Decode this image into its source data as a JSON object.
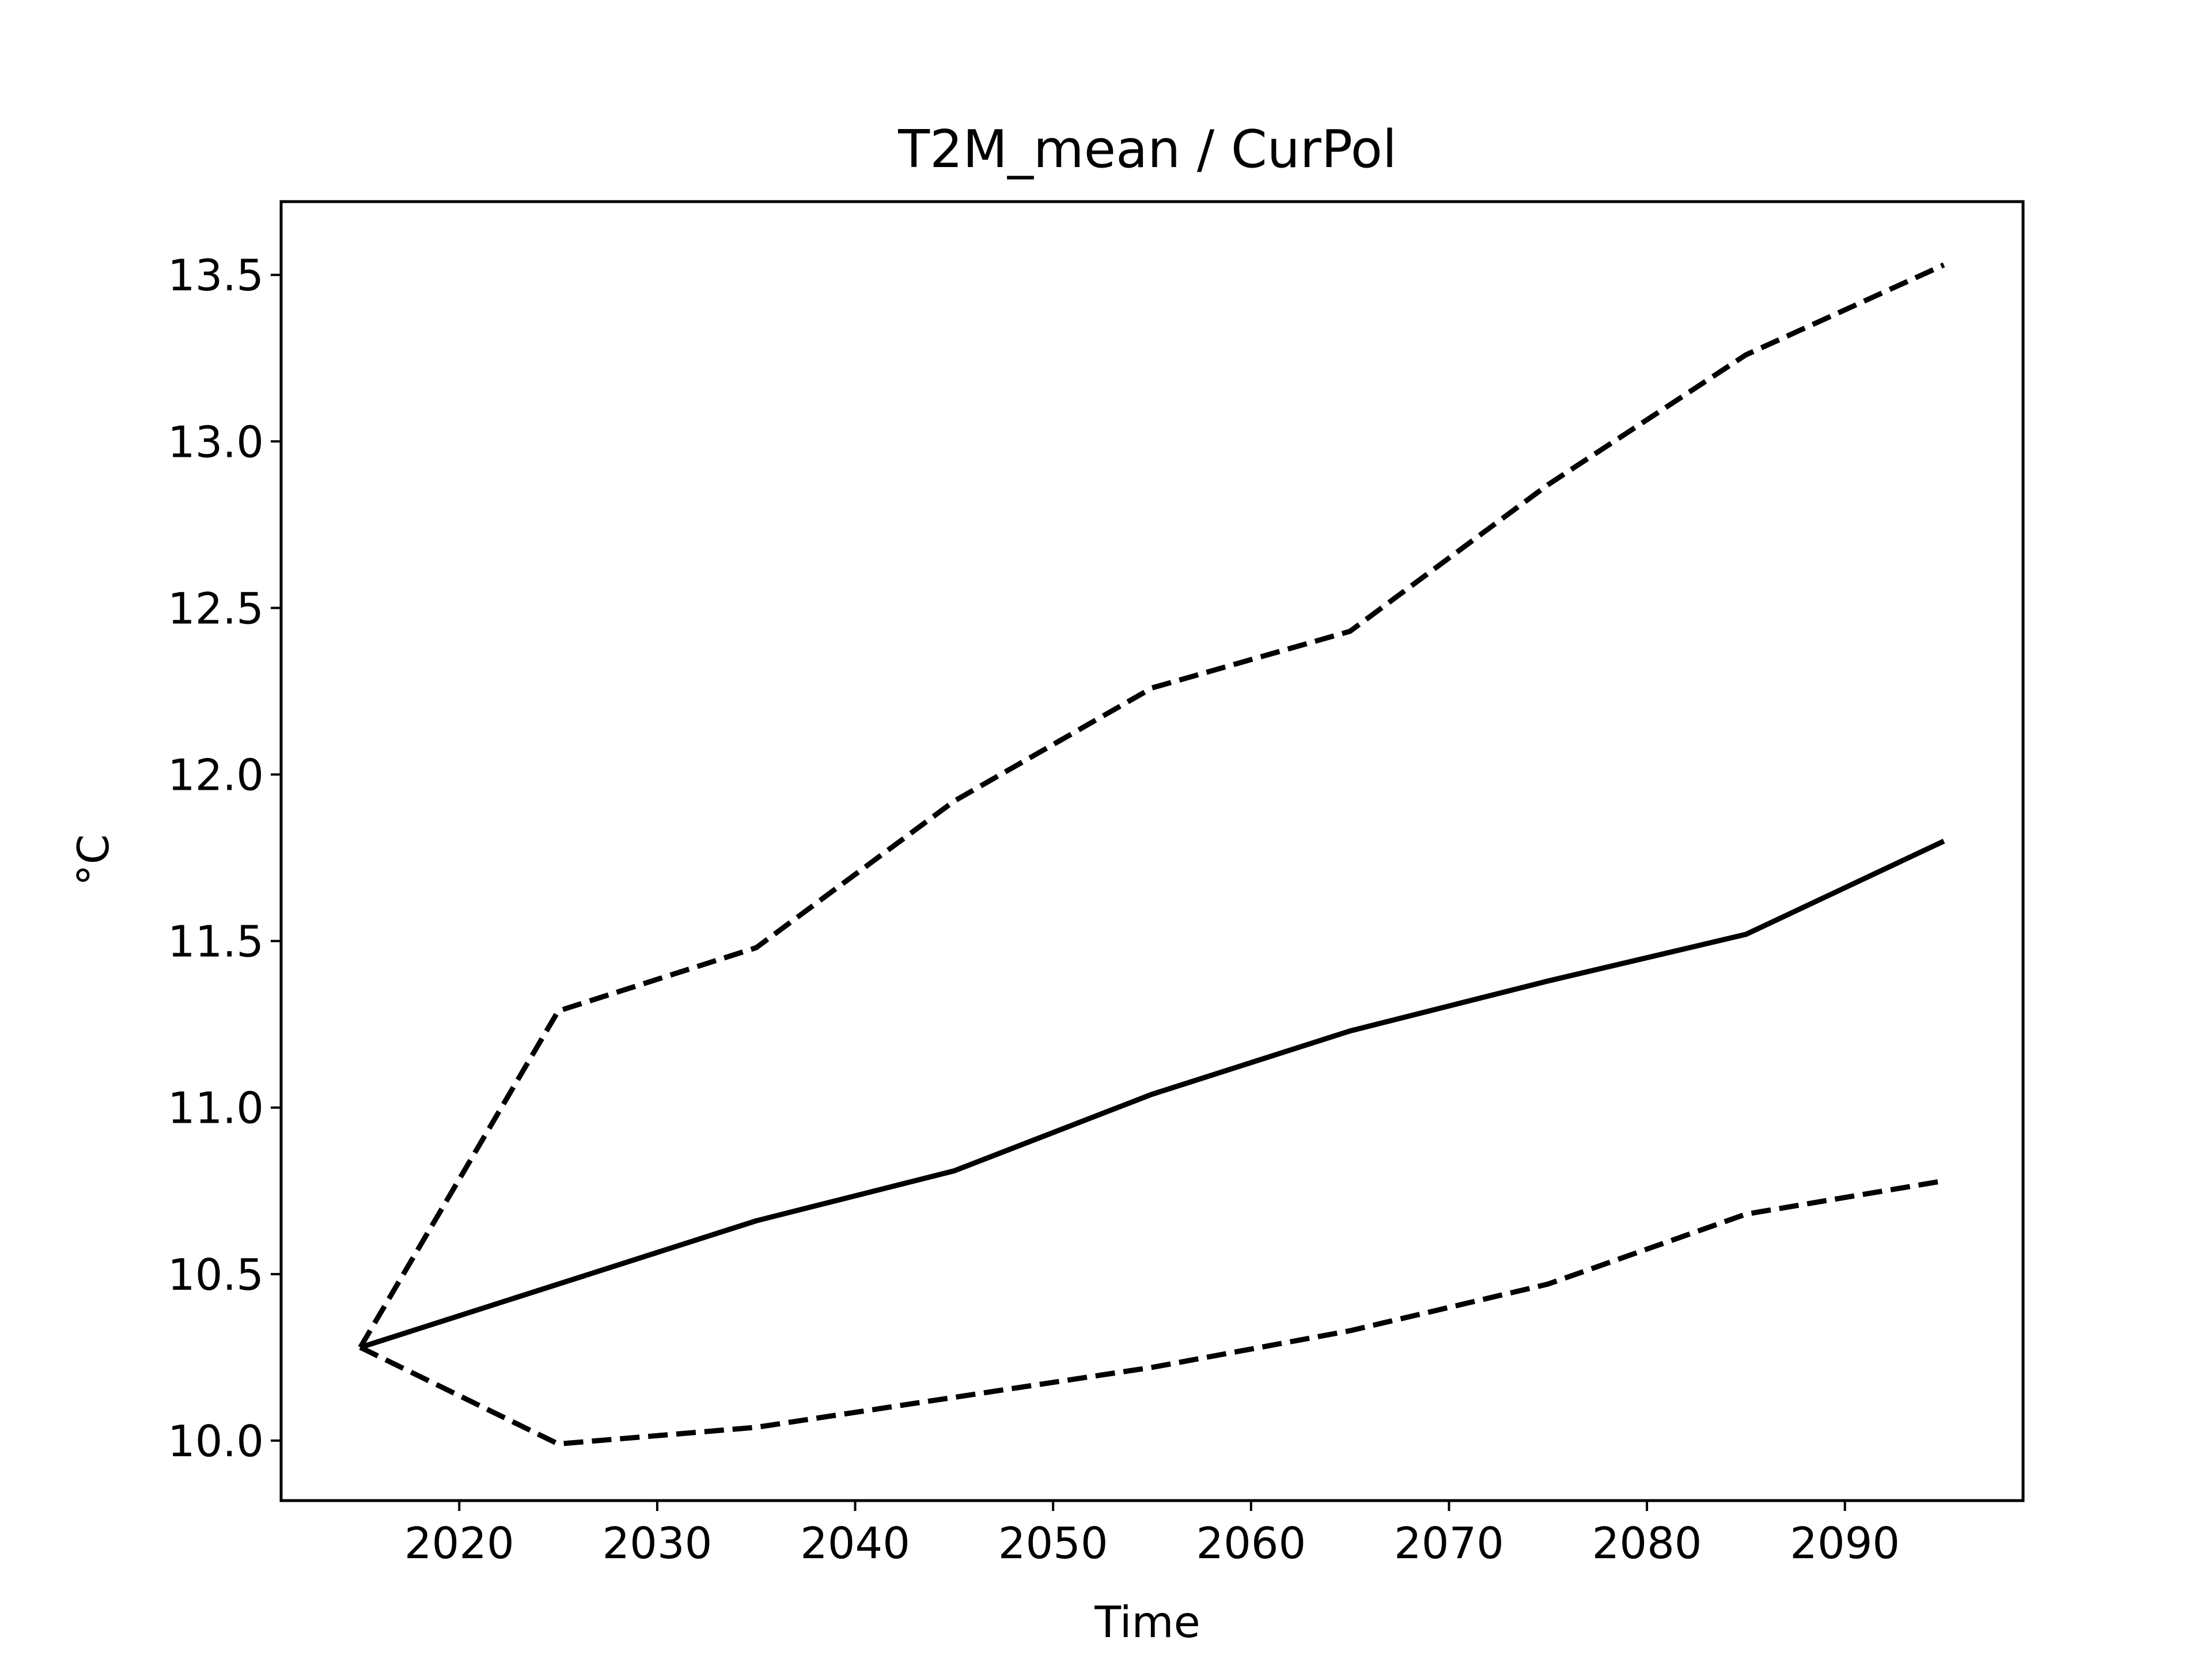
{
  "chart_data": {
    "type": "line",
    "title": "T2M_mean / CurPol",
    "xlabel": "Time",
    "ylabel": "°C",
    "x": [
      2015,
      2025,
      2035,
      2045,
      2055,
      2065,
      2075,
      2085,
      2095
    ],
    "xlim": [
      2011,
      2099
    ],
    "ylim": [
      9.82,
      13.72
    ],
    "xticks": [
      2020,
      2030,
      2040,
      2050,
      2060,
      2070,
      2080,
      2090
    ],
    "yticks": [
      10.0,
      10.5,
      11.0,
      11.5,
      12.0,
      12.5,
      13.0,
      13.5
    ],
    "xtick_labels": [
      "2020",
      "2030",
      "2040",
      "2050",
      "2060",
      "2070",
      "2080",
      "2090"
    ],
    "ytick_labels": [
      "10.0",
      "10.5",
      "11.0",
      "11.5",
      "12.0",
      "12.5",
      "13.0",
      "13.5"
    ],
    "grid": false,
    "legend": "none",
    "color": "#000000",
    "series": [
      {
        "style": "solid",
        "values": [
          10.28,
          10.47,
          10.66,
          10.81,
          11.04,
          11.23,
          11.38,
          11.52,
          11.8
        ]
      },
      {
        "style": "dashed",
        "values": [
          10.28,
          11.29,
          11.48,
          11.92,
          12.26,
          12.43,
          12.87,
          13.26,
          13.53
        ]
      },
      {
        "style": "dashed",
        "values": [
          10.28,
          9.99,
          10.04,
          10.13,
          10.22,
          10.33,
          10.47,
          10.68,
          10.78
        ]
      }
    ]
  }
}
